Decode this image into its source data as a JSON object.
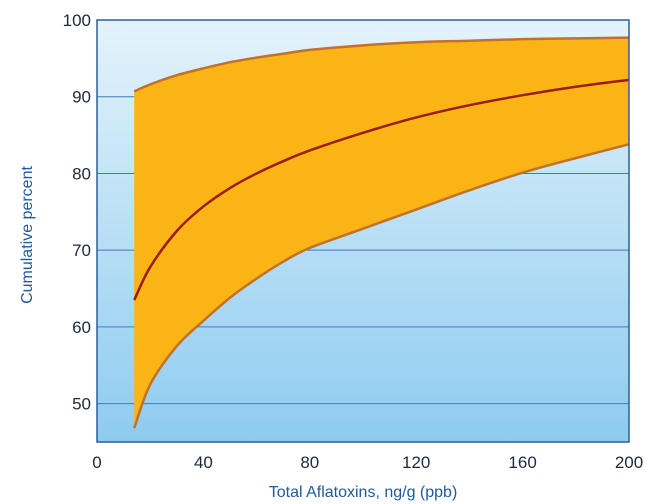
{
  "chart_data": {
    "type": "area",
    "title": "",
    "xlabel": "Total Aflatoxins, ng/g (ppb)",
    "ylabel": "Cumulative percent",
    "xlim": [
      0,
      200
    ],
    "ylim": [
      45,
      100
    ],
    "x_ticks": [
      0,
      40,
      80,
      120,
      160,
      200
    ],
    "y_ticks": [
      50,
      60,
      70,
      80,
      90,
      100
    ],
    "grid": "horizontal",
    "legend": "none",
    "series": [
      {
        "role": "upper-bound",
        "x": [
          14,
          20,
          30,
          40,
          50,
          60,
          70,
          80,
          100,
          120,
          140,
          160,
          180,
          200
        ],
        "y": [
          90.7,
          91.6,
          92.8,
          93.7,
          94.5,
          95.1,
          95.6,
          96.1,
          96.7,
          97.1,
          97.3,
          97.5,
          97.6,
          97.7
        ]
      },
      {
        "role": "median",
        "x": [
          14,
          20,
          30,
          40,
          50,
          60,
          70,
          80,
          100,
          120,
          140,
          160,
          180,
          200
        ],
        "y": [
          63.5,
          67.8,
          72.5,
          75.7,
          78.1,
          80.0,
          81.6,
          83.0,
          85.3,
          87.3,
          88.9,
          90.2,
          91.3,
          92.2
        ]
      },
      {
        "role": "lower-bound",
        "x": [
          14,
          20,
          30,
          40,
          50,
          60,
          70,
          80,
          100,
          120,
          140,
          160,
          180,
          200
        ],
        "y": [
          46.8,
          52.5,
          57.5,
          60.8,
          63.8,
          66.3,
          68.5,
          70.3,
          72.8,
          75.3,
          77.8,
          80.1,
          82.0,
          83.8
        ]
      }
    ],
    "colors": {
      "band_fill": "#fbb415",
      "band_edge": "#c2702a",
      "median_line": "#9a1c12",
      "bg_top": "#e4f3fb",
      "bg_bottom": "#8ecbf0",
      "grid": "#3d7dbf",
      "frame": "#2d5e96",
      "axis_title": "#1f5a9c",
      "tick_text": "#1c2a3a"
    }
  }
}
